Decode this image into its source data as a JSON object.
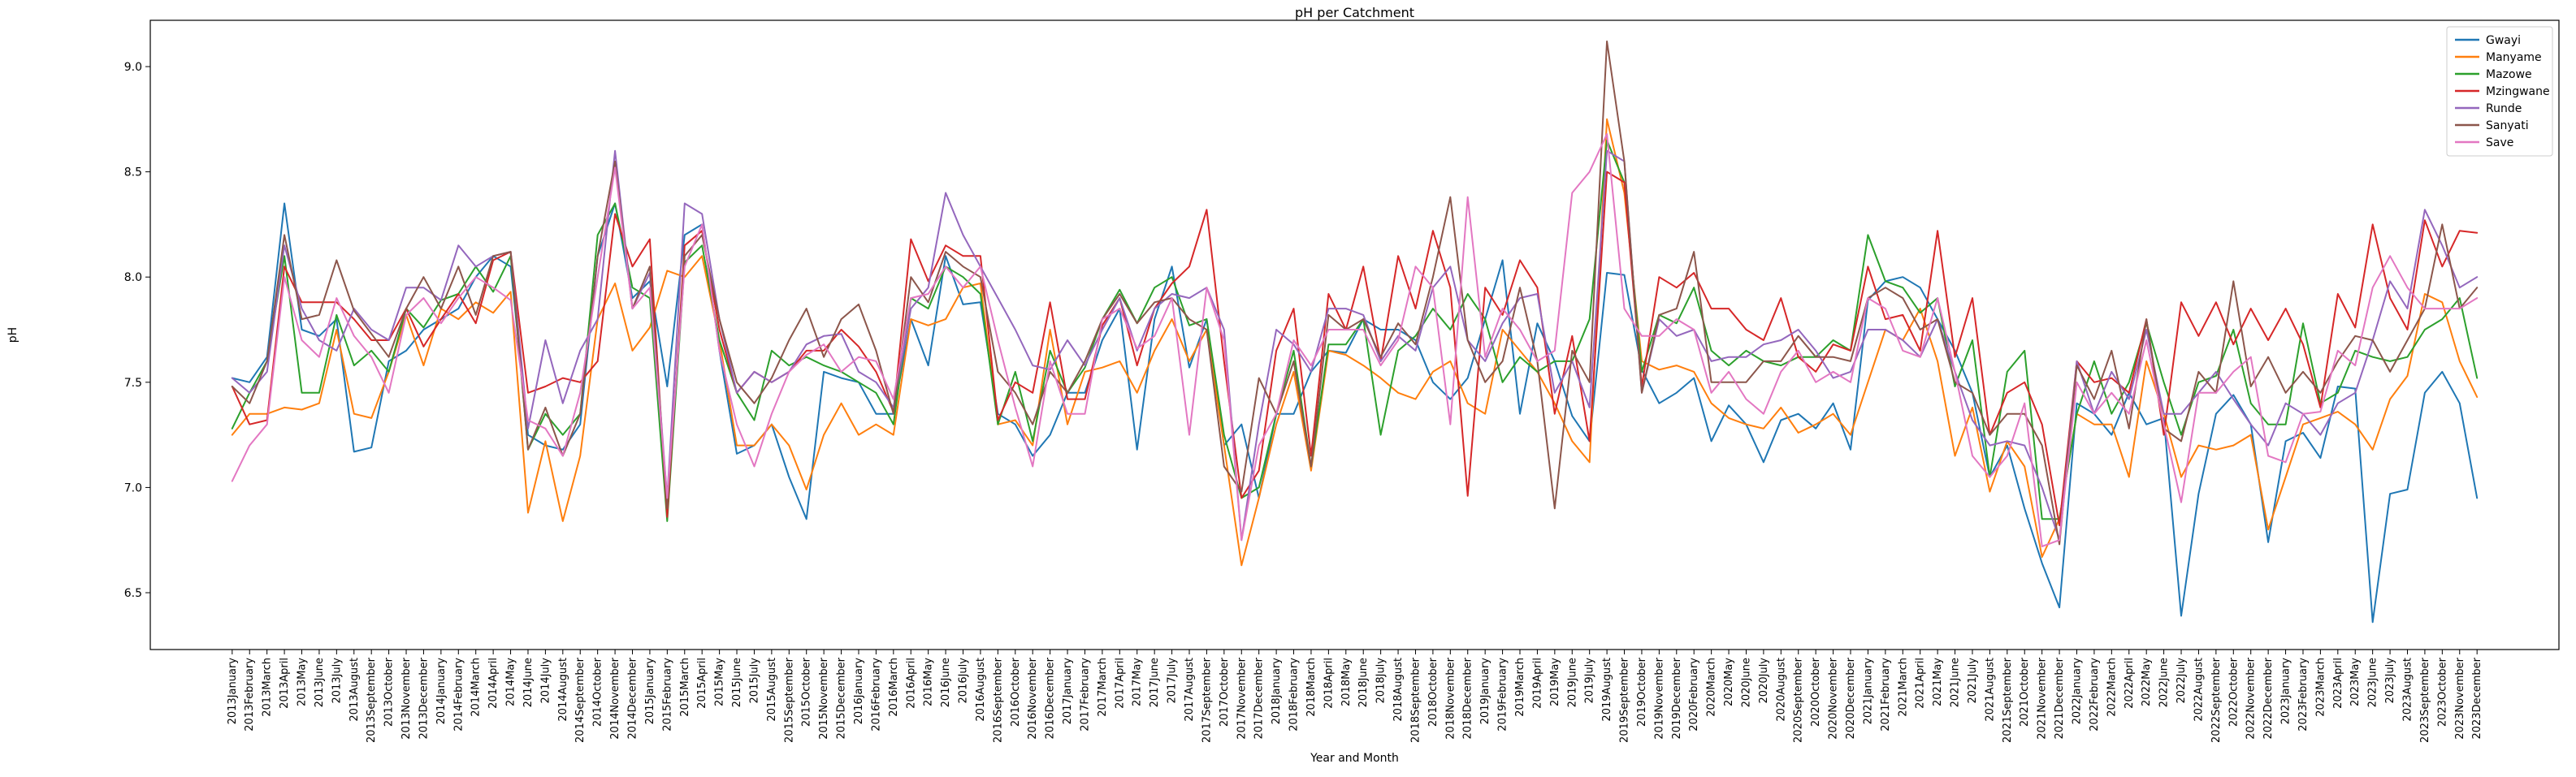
{
  "chart_data": {
    "type": "line",
    "title": "pH per Catchment",
    "xlabel": "Year and Month",
    "ylabel": "pH",
    "ylim": [
      6.23,
      9.22
    ],
    "yticks": [
      6.5,
      7.0,
      7.5,
      8.0,
      8.5,
      9.0
    ],
    "legend_position": "top-right",
    "grid": false,
    "categories": [
      "2013January",
      "2013February",
      "2013March",
      "2013April",
      "2013May",
      "2013June",
      "2013July",
      "2013August",
      "2013September",
      "2013October",
      "2013November",
      "2013December",
      "2014January",
      "2014February",
      "2014March",
      "2014April",
      "2014May",
      "2014June",
      "2014July",
      "2014August",
      "2014September",
      "2014October",
      "2014November",
      "2014December",
      "2015January",
      "2015February",
      "2015March",
      "2015April",
      "2015May",
      "2015June",
      "2015July",
      "2015August",
      "2015September",
      "2015October",
      "2015November",
      "2015December",
      "2016January",
      "2016February",
      "2016March",
      "2016April",
      "2016May",
      "2016June",
      "2016July",
      "2016August",
      "2016September",
      "2016October",
      "2016November",
      "2016December",
      "2017January",
      "2017February",
      "2017March",
      "2017April",
      "2017May",
      "2017June",
      "2017July",
      "2017August",
      "2017September",
      "2017October",
      "2017November",
      "2017December",
      "2018January",
      "2018February",
      "2018March",
      "2018April",
      "2018May",
      "2018June",
      "2018July",
      "2018August",
      "2018September",
      "2018October",
      "2018November",
      "2018December",
      "2019January",
      "2019February",
      "2019March",
      "2019April",
      "2019May",
      "2019June",
      "2019July",
      "2019August",
      "2019September",
      "2019October",
      "2019November",
      "2019December",
      "2020February",
      "2020March",
      "2020May",
      "2020June",
      "2020July",
      "2020August",
      "2020September",
      "2020October",
      "2020November",
      "2020December",
      "2021January",
      "2021February",
      "2021March",
      "2021April",
      "2021May",
      "2021June",
      "2021July",
      "2021August",
      "2021September",
      "2021October",
      "2021November",
      "2021December",
      "2022January",
      "2022February",
      "2022March",
      "2022April",
      "2022May",
      "2022June",
      "2022July",
      "2022August",
      "2022September",
      "2022October",
      "2022November",
      "2022December",
      "2023January",
      "2023February",
      "2023March",
      "2023April",
      "2023May",
      "2023June",
      "2023July",
      "2023August",
      "2023September",
      "2023October",
      "2023November",
      "2023December"
    ],
    "series": [
      {
        "name": "Gwayi",
        "color": "#1f77b4",
        "values": [
          7.52,
          7.5,
          7.62,
          8.35,
          7.75,
          7.72,
          7.8,
          7.17,
          7.19,
          7.6,
          7.65,
          7.75,
          7.8,
          7.85,
          8.0,
          8.1,
          8.05,
          7.25,
          7.2,
          7.18,
          7.3,
          8.1,
          8.35,
          7.9,
          7.98,
          7.48,
          8.2,
          8.25,
          7.65,
          7.16,
          7.2,
          7.3,
          7.05,
          6.85,
          7.55,
          7.52,
          7.5,
          7.35,
          7.35,
          7.8,
          7.58,
          8.1,
          7.87,
          7.88,
          7.35,
          7.3,
          7.15,
          7.25,
          7.45,
          7.45,
          7.7,
          7.85,
          7.18,
          7.8,
          8.05,
          7.57,
          7.8,
          7.2,
          7.3,
          6.95,
          7.35,
          7.35,
          7.55,
          7.65,
          7.64,
          7.8,
          7.75,
          7.75,
          7.7,
          7.5,
          7.42,
          7.52,
          7.8,
          8.08,
          7.35,
          7.78,
          7.6,
          7.34,
          7.22,
          8.02,
          8.01,
          7.56,
          7.4,
          7.45,
          7.52,
          7.22,
          7.39,
          7.3,
          7.12,
          7.32,
          7.35,
          7.28,
          7.4,
          7.18,
          7.89,
          7.98,
          8.0,
          7.95,
          7.8,
          7.65,
          7.45,
          7.05,
          7.2,
          6.9,
          6.64,
          6.43,
          7.4,
          7.35,
          7.25,
          7.45,
          7.3,
          7.33,
          6.39,
          6.97,
          7.35,
          7.44,
          7.3,
          6.74,
          7.22,
          7.26,
          7.14,
          7.48,
          7.47,
          6.36,
          6.97,
          6.99,
          7.45,
          7.55,
          7.4,
          6.95
        ]
      },
      {
        "name": "Manyame",
        "color": "#ff7f0e",
        "values": [
          7.25,
          7.35,
          7.35,
          7.38,
          7.37,
          7.4,
          7.75,
          7.35,
          7.33,
          7.55,
          7.82,
          7.58,
          7.85,
          7.8,
          7.88,
          7.83,
          7.93,
          6.88,
          7.22,
          6.84,
          7.15,
          7.8,
          7.97,
          7.65,
          7.76,
          8.03,
          8.0,
          8.1,
          7.7,
          7.2,
          7.2,
          7.3,
          7.2,
          6.99,
          7.25,
          7.4,
          7.25,
          7.3,
          7.25,
          7.8,
          7.77,
          7.8,
          7.95,
          7.97,
          7.3,
          7.32,
          7.2,
          7.75,
          7.3,
          7.55,
          7.57,
          7.6,
          7.45,
          7.65,
          7.8,
          7.6,
          7.75,
          7.2,
          6.63,
          6.95,
          7.3,
          7.55,
          7.08,
          7.65,
          7.63,
          7.58,
          7.52,
          7.45,
          7.42,
          7.55,
          7.6,
          7.4,
          7.35,
          7.75,
          7.65,
          7.55,
          7.4,
          7.22,
          7.12,
          8.75,
          8.4,
          7.6,
          7.56,
          7.58,
          7.55,
          7.4,
          7.33,
          7.3,
          7.28,
          7.38,
          7.26,
          7.3,
          7.35,
          7.25,
          7.5,
          7.75,
          7.7,
          7.85,
          7.6,
          7.15,
          7.38,
          6.98,
          7.22,
          7.1,
          6.67,
          6.85,
          7.35,
          7.3,
          7.3,
          7.05,
          7.6,
          7.35,
          7.05,
          7.2,
          7.18,
          7.2,
          7.25,
          6.8,
          7.05,
          7.3,
          7.33,
          7.36,
          7.3,
          7.18,
          7.42,
          7.53,
          7.92,
          7.88,
          7.6,
          7.43
        ]
      },
      {
        "name": "Mazowe",
        "color": "#2ca02c",
        "values": [
          7.28,
          7.45,
          7.6,
          8.1,
          7.45,
          7.45,
          7.82,
          7.58,
          7.65,
          7.55,
          7.85,
          7.76,
          7.89,
          7.92,
          8.05,
          7.93,
          8.1,
          7.18,
          7.35,
          7.25,
          7.35,
          8.2,
          8.35,
          7.95,
          7.9,
          6.84,
          8.07,
          8.15,
          7.7,
          7.45,
          7.32,
          7.65,
          7.58,
          7.62,
          7.58,
          7.55,
          7.5,
          7.45,
          7.3,
          7.9,
          7.85,
          8.05,
          8.0,
          7.92,
          7.3,
          7.55,
          7.22,
          7.65,
          7.45,
          7.57,
          7.8,
          7.94,
          7.78,
          7.95,
          8.0,
          7.77,
          7.8,
          7.25,
          6.95,
          7.0,
          7.35,
          7.65,
          7.1,
          7.68,
          7.68,
          7.8,
          7.25,
          7.65,
          7.72,
          7.85,
          7.75,
          7.92,
          7.8,
          7.5,
          7.62,
          7.55,
          7.6,
          7.6,
          7.8,
          8.65,
          8.45,
          7.55,
          7.82,
          7.78,
          7.95,
          7.65,
          7.58,
          7.65,
          7.6,
          7.58,
          7.62,
          7.62,
          7.7,
          7.65,
          8.2,
          7.98,
          7.95,
          7.83,
          7.9,
          7.48,
          7.7,
          7.05,
          7.55,
          7.65,
          6.85,
          6.85,
          7.35,
          7.6,
          7.35,
          7.5,
          7.78,
          7.5,
          7.25,
          7.5,
          7.53,
          7.75,
          7.4,
          7.3,
          7.3,
          7.78,
          7.4,
          7.45,
          7.65,
          7.62,
          7.6,
          7.62,
          7.75,
          7.8,
          7.9,
          7.52
        ]
      },
      {
        "name": "Mzingwane",
        "color": "#d62728",
        "values": [
          7.48,
          7.3,
          7.32,
          8.05,
          7.88,
          7.88,
          7.88,
          7.8,
          7.7,
          7.7,
          7.85,
          7.67,
          7.8,
          7.92,
          7.78,
          8.08,
          8.12,
          7.45,
          7.48,
          7.52,
          7.5,
          7.6,
          8.3,
          8.05,
          8.18,
          6.86,
          8.15,
          8.22,
          7.75,
          7.45,
          7.55,
          7.5,
          7.55,
          7.65,
          7.65,
          7.75,
          7.67,
          7.55,
          7.36,
          8.18,
          7.98,
          8.15,
          8.1,
          8.1,
          7.32,
          7.5,
          7.45,
          7.88,
          7.42,
          7.42,
          7.77,
          7.9,
          7.58,
          7.85,
          7.97,
          8.05,
          8.32,
          7.6,
          6.95,
          7.08,
          7.65,
          7.85,
          7.15,
          7.92,
          7.75,
          8.05,
          7.6,
          8.1,
          7.85,
          8.22,
          7.95,
          6.96,
          7.95,
          7.82,
          8.08,
          7.95,
          7.35,
          7.72,
          7.22,
          8.5,
          8.45,
          7.48,
          8.0,
          7.95,
          8.02,
          7.85,
          7.85,
          7.75,
          7.7,
          7.9,
          7.62,
          7.55,
          7.68,
          7.65,
          8.05,
          7.8,
          7.82,
          7.65,
          8.22,
          7.62,
          7.9,
          7.25,
          7.45,
          7.5,
          7.3,
          6.82,
          7.6,
          7.5,
          7.52,
          7.45,
          7.8,
          7.25,
          7.88,
          7.72,
          7.88,
          7.68,
          7.85,
          7.7,
          7.85,
          7.68,
          7.38,
          7.92,
          7.76,
          8.25,
          7.9,
          7.75,
          8.27,
          8.05,
          8.22,
          8.21
        ]
      },
      {
        "name": "Runde",
        "color": "#9467bd",
        "values": [
          7.52,
          7.45,
          7.55,
          8.15,
          7.85,
          7.7,
          7.65,
          7.85,
          7.75,
          7.7,
          7.95,
          7.95,
          7.89,
          8.15,
          8.05,
          8.1,
          8.12,
          7.28,
          7.7,
          7.4,
          7.65,
          7.8,
          8.6,
          7.85,
          8.02,
          6.95,
          8.35,
          8.3,
          7.8,
          7.45,
          7.55,
          7.5,
          7.55,
          7.68,
          7.72,
          7.73,
          7.55,
          7.5,
          7.38,
          7.85,
          7.95,
          8.4,
          8.2,
          8.05,
          7.9,
          7.75,
          7.58,
          7.56,
          7.7,
          7.58,
          7.75,
          7.9,
          7.65,
          7.85,
          7.92,
          7.9,
          7.95,
          7.75,
          6.75,
          7.3,
          7.75,
          7.68,
          7.55,
          7.85,
          7.85,
          7.82,
          7.6,
          7.72,
          7.65,
          7.95,
          8.05,
          7.7,
          7.6,
          7.78,
          7.9,
          7.92,
          7.45,
          7.6,
          7.38,
          8.6,
          8.55,
          7.45,
          7.8,
          7.72,
          7.75,
          7.6,
          7.62,
          7.62,
          7.68,
          7.7,
          7.75,
          7.65,
          7.52,
          7.55,
          7.75,
          7.75,
          7.7,
          7.62,
          7.8,
          7.55,
          7.32,
          7.2,
          7.22,
          7.2,
          7.0,
          6.75,
          7.6,
          7.35,
          7.55,
          7.42,
          7.75,
          7.35,
          7.35,
          7.45,
          7.55,
          7.42,
          7.3,
          7.2,
          7.4,
          7.35,
          7.25,
          7.4,
          7.45,
          7.7,
          7.98,
          7.85,
          8.32,
          8.15,
          7.95,
          8.0
        ]
      },
      {
        "name": "Sanyati",
        "color": "#8c564b",
        "values": [
          7.48,
          7.4,
          7.6,
          8.2,
          7.8,
          7.82,
          8.08,
          7.84,
          7.73,
          7.62,
          7.85,
          8.0,
          7.85,
          8.05,
          7.82,
          8.1,
          8.12,
          7.18,
          7.38,
          7.15,
          7.35,
          8.1,
          8.55,
          7.85,
          8.05,
          6.9,
          8.1,
          8.2,
          7.8,
          7.5,
          7.4,
          7.52,
          7.7,
          7.85,
          7.62,
          7.8,
          7.87,
          7.65,
          7.35,
          8.0,
          7.88,
          8.12,
          8.05,
          8.0,
          7.55,
          7.45,
          7.3,
          7.55,
          7.45,
          7.6,
          7.8,
          7.92,
          7.78,
          7.88,
          7.9,
          7.8,
          7.75,
          7.1,
          6.98,
          7.52,
          7.35,
          7.6,
          7.1,
          7.82,
          7.75,
          7.8,
          7.62,
          7.78,
          7.68,
          8.0,
          8.38,
          7.7,
          7.5,
          7.6,
          7.95,
          7.6,
          6.9,
          7.65,
          7.5,
          9.12,
          8.55,
          7.45,
          7.82,
          7.85,
          8.12,
          7.5,
          7.5,
          7.5,
          7.6,
          7.6,
          7.72,
          7.62,
          7.62,
          7.6,
          7.9,
          7.95,
          7.9,
          7.75,
          7.8,
          7.5,
          7.45,
          7.25,
          7.35,
          7.35,
          7.2,
          6.73,
          7.58,
          7.42,
          7.65,
          7.28,
          7.8,
          7.28,
          7.22,
          7.55,
          7.45,
          7.98,
          7.48,
          7.62,
          7.45,
          7.55,
          7.45,
          7.6,
          7.72,
          7.7,
          7.55,
          7.7,
          7.85,
          8.25,
          7.85,
          7.95
        ]
      },
      {
        "name": "Save",
        "color": "#e377c2",
        "values": [
          7.03,
          7.2,
          7.3,
          8.0,
          7.7,
          7.62,
          7.9,
          7.72,
          7.62,
          7.45,
          7.82,
          7.9,
          7.78,
          7.9,
          8.0,
          7.95,
          7.89,
          7.32,
          7.28,
          7.15,
          7.45,
          8.0,
          8.52,
          7.85,
          7.95,
          6.95,
          8.05,
          8.25,
          7.65,
          7.3,
          7.1,
          7.35,
          7.55,
          7.63,
          7.68,
          7.55,
          7.62,
          7.6,
          7.42,
          7.9,
          7.92,
          8.05,
          7.95,
          8.05,
          7.7,
          7.38,
          7.1,
          7.6,
          7.35,
          7.35,
          7.8,
          7.85,
          7.66,
          7.72,
          7.9,
          7.25,
          7.95,
          7.7,
          6.75,
          7.2,
          7.35,
          7.7,
          7.58,
          7.75,
          7.75,
          7.75,
          7.58,
          7.7,
          8.05,
          7.95,
          7.3,
          8.38,
          7.62,
          7.85,
          7.75,
          7.6,
          7.65,
          8.4,
          8.5,
          8.68,
          7.85,
          7.72,
          7.72,
          7.8,
          7.75,
          7.45,
          7.55,
          7.42,
          7.35,
          7.55,
          7.65,
          7.5,
          7.55,
          7.5,
          7.9,
          7.85,
          7.65,
          7.62,
          7.9,
          7.55,
          7.15,
          7.05,
          7.15,
          7.4,
          6.72,
          6.75,
          7.5,
          7.35,
          7.45,
          7.35,
          7.7,
          7.3,
          6.93,
          7.45,
          7.45,
          7.55,
          7.62,
          7.15,
          7.12,
          7.35,
          7.36,
          7.65,
          7.58,
          7.95,
          8.1,
          7.95,
          7.85,
          7.85,
          7.85,
          7.9
        ]
      }
    ]
  }
}
